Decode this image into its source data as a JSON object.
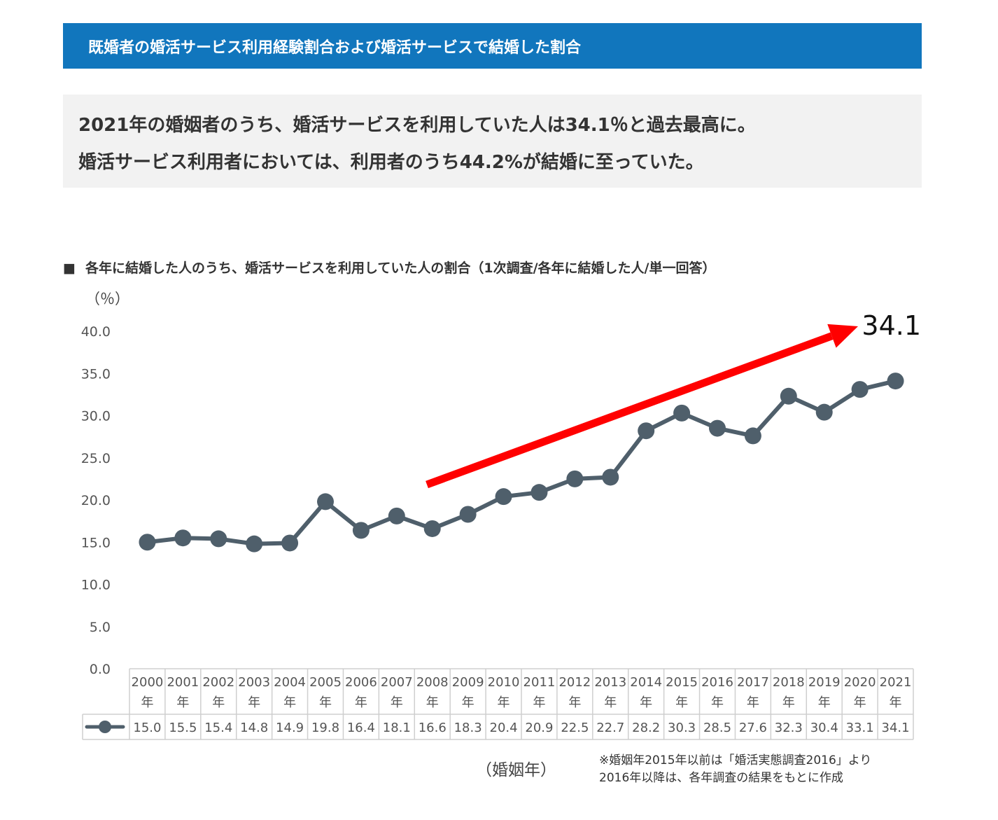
{
  "header": {
    "title": "既婚者の婚活サービス利用経験割合および婚活サービスで結婚した割合"
  },
  "summary": {
    "line1": "2021年の婚姻者のうち、婚活サービスを利用していた人は34.1％と過去最高に。",
    "line2": "婚活サービス利用者においては、利用者のうち44.2%が結婚に至っていた。"
  },
  "chart_caption": {
    "bullet": "■",
    "text": "各年に結婚した人のうち、婚活サービスを利用していた人の割合（1次調査/各年に結婚した人/単一回答）"
  },
  "chart_data": {
    "type": "line",
    "ylabel": "（％）",
    "xlabel": "（婚姻年）",
    "ylim": [
      0,
      40
    ],
    "ytick_labels": [
      "0.0",
      "5.0",
      "10.0",
      "15.0",
      "20.0",
      "25.0",
      "30.0",
      "35.0",
      "40.0"
    ],
    "ytick_values": [
      0,
      5,
      10,
      15,
      20,
      25,
      30,
      35,
      40
    ],
    "year_labels": [
      "2000",
      "2001",
      "2002",
      "2003",
      "2004",
      "2005",
      "2006",
      "2007",
      "2008",
      "2009",
      "2010",
      "2011",
      "2012",
      "2013",
      "2014",
      "2015",
      "2016",
      "2017",
      "2018",
      "2019",
      "2020",
      "2021"
    ],
    "year_suffix": "年",
    "values": [
      15.0,
      15.5,
      15.4,
      14.8,
      14.9,
      19.8,
      16.4,
      18.1,
      16.6,
      18.3,
      20.4,
      20.9,
      22.5,
      22.7,
      28.2,
      30.3,
      28.5,
      27.6,
      32.3,
      30.4,
      33.1,
      34.1
    ],
    "value_labels": [
      "15.0",
      "15.5",
      "15.4",
      "14.8",
      "14.9",
      "19.8",
      "16.4",
      "18.1",
      "16.6",
      "18.3",
      "20.4",
      "20.9",
      "22.5",
      "22.7",
      "28.2",
      "30.3",
      "28.5",
      "27.6",
      "32.3",
      "30.4",
      "33.1",
      "34.1"
    ],
    "grid": false,
    "line_color": "#4f5f6b",
    "trend_arrow_color": "#ff0000",
    "annotation": "34.1"
  },
  "footnote": {
    "line1": "※婚姻年2015年以前は「婚活実態調査2016」より",
    "line2": "2016年以降は、各年調査の結果をもとに作成"
  },
  "colors": {
    "header_bg": "#1176bd",
    "summary_bg": "#f2f2f2"
  }
}
